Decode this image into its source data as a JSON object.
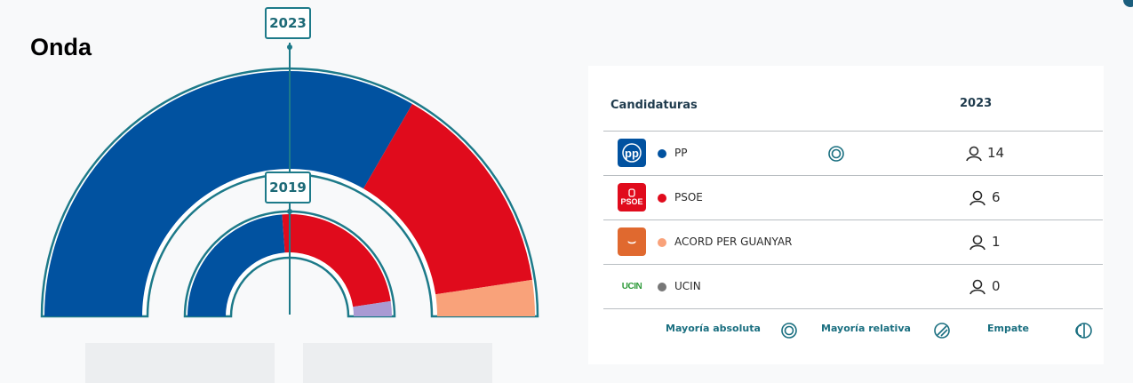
{
  "municipality": "Onda",
  "years": {
    "outer": "2023",
    "inner": "2019"
  },
  "colors": {
    "PP": "#0152a0",
    "PSOE": "#e00b1c",
    "ACORD": "#f9a27a",
    "UCIN": "#777777",
    "inner_minor": "#a99ad3",
    "accent": "#1d7a89"
  },
  "chart_data": [
    {
      "type": "pie",
      "subtype": "half-donut",
      "title": "2023",
      "categories": [
        "PP",
        "PSOE",
        "ACORD PER GUANYAR",
        "UCIN"
      ],
      "values": [
        14,
        6,
        1,
        0
      ]
    },
    {
      "type": "pie",
      "subtype": "half-donut",
      "title": "2019",
      "note_values_estimated": true,
      "categories": [
        "PP",
        "PSOE",
        "other"
      ],
      "values": [
        10,
        10,
        1
      ]
    }
  ],
  "table": {
    "header_candidates": "Candidaturas",
    "header_year": "2023",
    "rows": [
      {
        "logo_text": "pp",
        "name": "PP",
        "color": "#0152a0",
        "logo_bg": "#0152a0",
        "seats": "14",
        "majority": "absoluta"
      },
      {
        "logo_text": "PSOE",
        "name": "PSOE",
        "color": "#e00b1c",
        "logo_bg": "#e00b1c",
        "seats": "6",
        "majority": ""
      },
      {
        "logo_text": "⌣",
        "name": "ACORD PER GUANYAR",
        "color": "#f9a27a",
        "logo_bg": "#e0692f",
        "seats": "1",
        "majority": ""
      },
      {
        "logo_text": "UCIN",
        "name": "UCIN",
        "color": "#777777",
        "logo_bg": "transparent",
        "seats": "0",
        "majority": ""
      }
    ]
  },
  "legend": {
    "absolute": "Mayoría absoluta",
    "relative": "Mayoría relativa",
    "tie": "Empate"
  }
}
